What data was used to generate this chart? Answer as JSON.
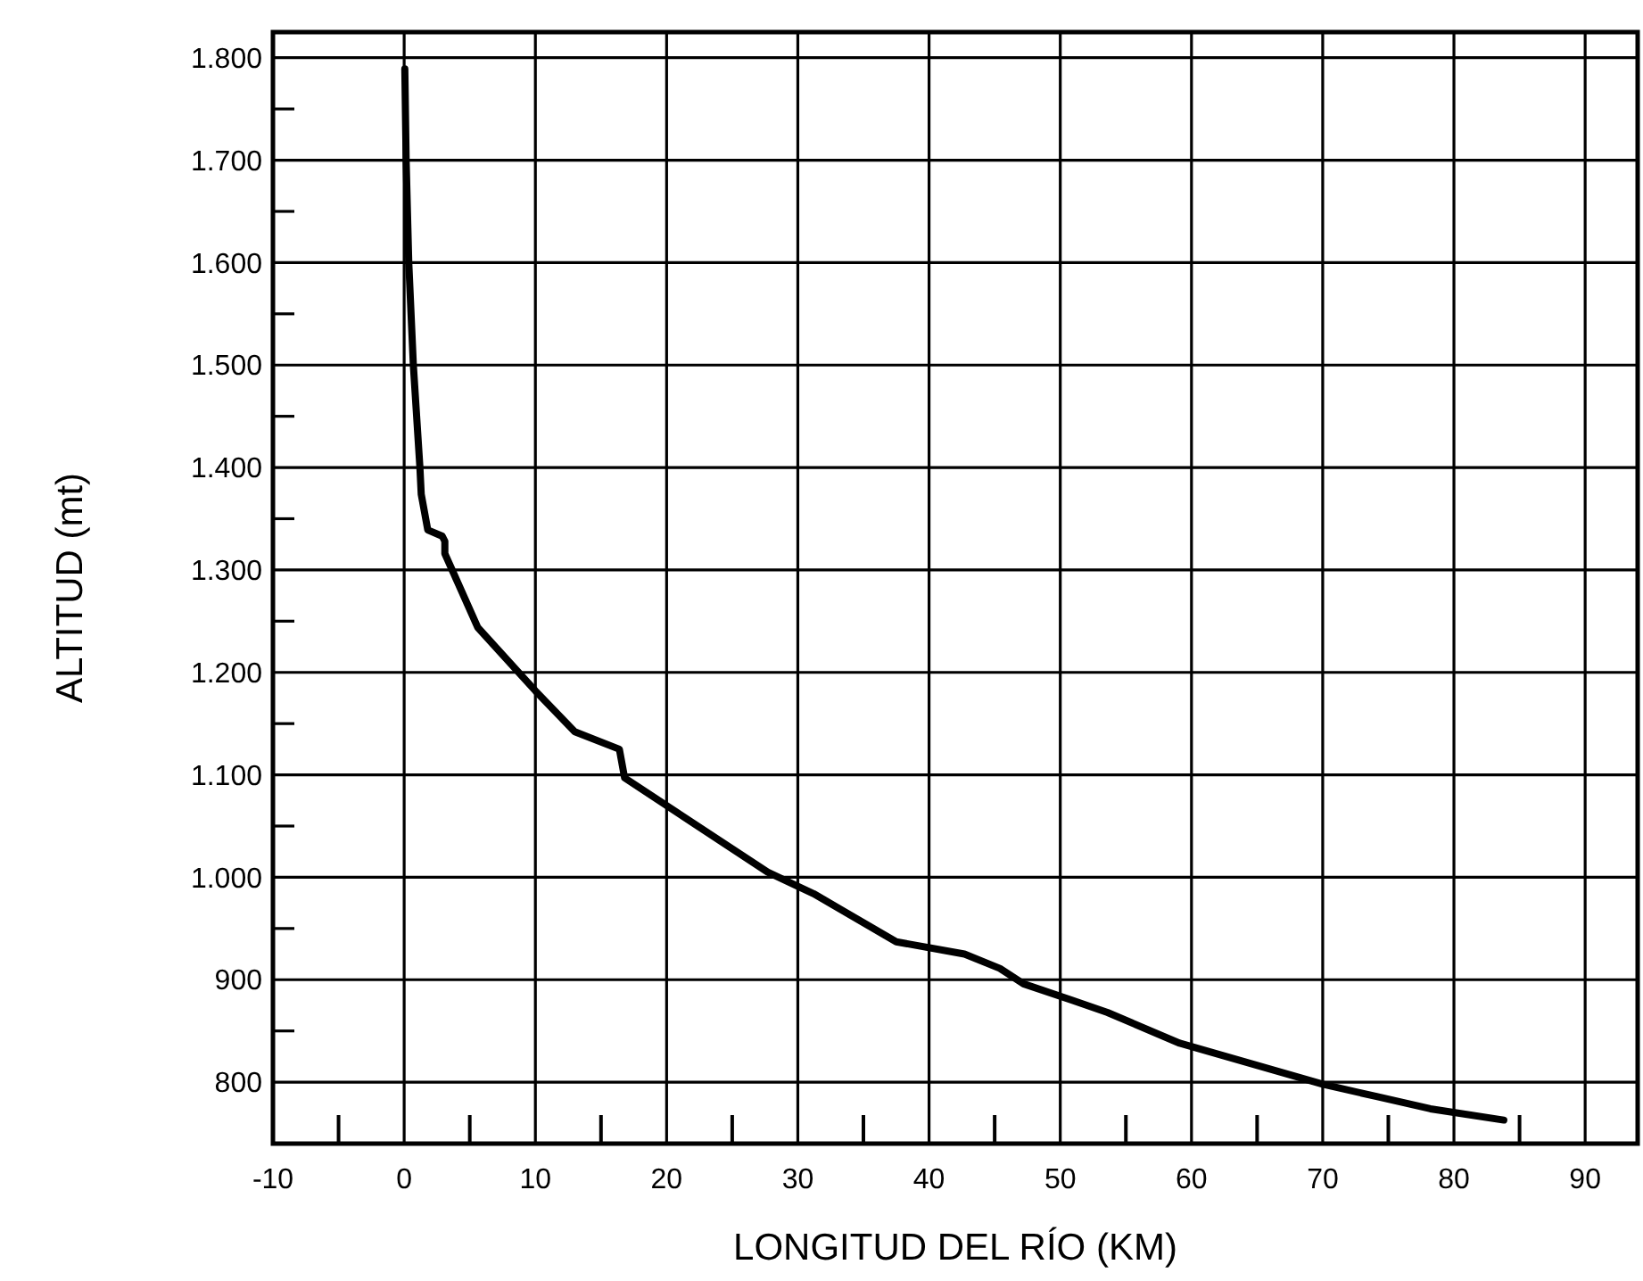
{
  "chart_data": {
    "type": "line",
    "xlabel": "LONGITUD DEL RÍO (KM)",
    "ylabel": "ALTITUD (mt)",
    "xlim": [
      -10,
      94
    ],
    "ylim": [
      740,
      1825
    ],
    "xticks": [
      -10,
      {
        "value": -5,
        "label": null
      },
      0,
      {
        "value": 5,
        "label": null
      },
      10,
      {
        "value": 15,
        "label": null
      },
      20,
      {
        "value": 25,
        "label": null
      },
      30,
      {
        "value": 35,
        "label": null
      },
      40,
      {
        "value": 45,
        "label": null
      },
      50,
      {
        "value": 55,
        "label": null
      },
      60,
      {
        "value": 65,
        "label": null
      },
      70,
      {
        "value": 75,
        "label": null
      },
      80,
      {
        "value": 85,
        "label": null
      },
      90
    ],
    "yticks": [
      800,
      {
        "value": 850,
        "label": null
      },
      900,
      {
        "value": 950,
        "label": null
      },
      {
        "value": 1000,
        "label": "1.000"
      },
      {
        "value": 1050,
        "label": null
      },
      {
        "value": 1100,
        "label": "1.100"
      },
      {
        "value": 1150,
        "label": null
      },
      {
        "value": 1200,
        "label": "1.200"
      },
      {
        "value": 1250,
        "label": null
      },
      {
        "value": 1300,
        "label": "1.300"
      },
      {
        "value": 1350,
        "label": null
      },
      {
        "value": 1400,
        "label": "1.400"
      },
      {
        "value": 1450,
        "label": null
      },
      {
        "value": 1500,
        "label": "1.500"
      },
      {
        "value": 1550,
        "label": null
      },
      {
        "value": 1600,
        "label": "1.600"
      },
      {
        "value": 1650,
        "label": null
      },
      {
        "value": 1700,
        "label": "1.700"
      },
      {
        "value": 1750,
        "label": null
      },
      {
        "value": 1800,
        "label": "1.800"
      }
    ],
    "grid": true,
    "marker": "none",
    "series": [
      {
        "color": "#000000",
        "x": [
          0.05,
          0.15,
          0.35,
          0.7,
          1.2,
          1.3,
          1.8,
          2.9,
          3.1,
          3.1,
          5.6,
          10,
          13,
          16.4,
          16.8,
          27.7,
          31.2,
          37.5,
          42.7,
          45.4,
          47.2,
          50.9,
          53.6,
          59.1,
          70,
          74.1,
          78.2,
          83.8
        ],
        "values": [
          1789,
          1700,
          1600,
          1500,
          1400,
          1374,
          1339,
          1333,
          1328,
          1316,
          1244,
          1182,
          1142,
          1125,
          1097,
          1005,
          984,
          937,
          925,
          911,
          896,
          880,
          868,
          838,
          798,
          786,
          774,
          763
        ]
      }
    ]
  }
}
